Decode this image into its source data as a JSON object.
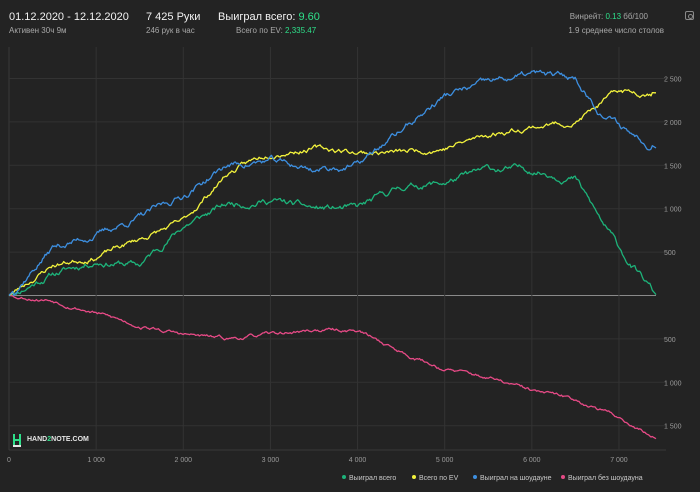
{
  "header": {
    "date_range": "01.12.2020 - 12.12.2020",
    "active": "Активен 30ч 9м",
    "hands": "7 425 Руки",
    "hands_per_hour": "246 рук в час",
    "won_label": "Выиграл всего:",
    "won_value": "9.60",
    "ev_label": "Всего по EV:",
    "ev_value": "2,335.47",
    "winrate_label": "Винрейт:",
    "winrate_value": "0.13",
    "winrate_unit": "бб/100",
    "tables": "1.9 среднее число столов",
    "icon": "instagram-icon"
  },
  "logo": {
    "text_a": "HAND",
    "text_b": "2",
    "text_c": "NOTE.COM"
  },
  "colors": {
    "background": "#232323",
    "total": "#1db37a",
    "ev": "#f2f23c",
    "showdown": "#3d8fe0",
    "non_showdown": "#e64a86"
  },
  "chart_data": {
    "type": "line",
    "x_ticks": [
      "0",
      "1 000",
      "2 000",
      "3 000",
      "4 000",
      "5 000",
      "6 000",
      "7 000"
    ],
    "y_ticks_positive": [
      "500",
      "1 000",
      "1 500",
      "2 000",
      "2 500"
    ],
    "y_ticks_negative": [
      "500",
      "1 000",
      "1 500"
    ],
    "xlim": [
      0,
      7425
    ],
    "ylim": [
      -1700,
      2800
    ],
    "grid": true,
    "legend_position": "bottom-right",
    "series": [
      {
        "name": "Выиграл всего",
        "color": "#1db37a",
        "volatility": 55,
        "seed": 11,
        "x": [
          0,
          500,
          1000,
          1500,
          2000,
          2500,
          3000,
          3500,
          4000,
          4500,
          5000,
          5500,
          6000,
          6500,
          6800,
          7100,
          7425
        ],
        "y": [
          0,
          250,
          400,
          350,
          800,
          1050,
          1100,
          1000,
          1000,
          1250,
          1300,
          1450,
          1450,
          1350,
          850,
          400,
          10
        ]
      },
      {
        "name": "Всего по EV",
        "color": "#f2f23c",
        "volatility": 45,
        "seed": 23,
        "x": [
          0,
          500,
          1000,
          1500,
          2000,
          2500,
          3000,
          3500,
          4000,
          4500,
          5000,
          5500,
          6000,
          6500,
          7000,
          7425
        ],
        "y": [
          0,
          350,
          450,
          650,
          850,
          1400,
          1650,
          1700,
          1650,
          1650,
          1700,
          1850,
          1950,
          2000,
          2350,
          2335
        ]
      },
      {
        "name": "Выиграл на шоудауне",
        "color": "#3d8fe0",
        "volatility": 55,
        "seed": 37,
        "x": [
          0,
          500,
          1000,
          1500,
          2000,
          2500,
          3000,
          3500,
          4000,
          4500,
          5000,
          5500,
          6000,
          6500,
          6800,
          7100,
          7425
        ],
        "y": [
          0,
          550,
          700,
          900,
          1150,
          1500,
          1550,
          1450,
          1500,
          1900,
          2300,
          2450,
          2550,
          2500,
          2100,
          1900,
          1700
        ]
      },
      {
        "name": "Выиграл без шоудауна",
        "color": "#e64a86",
        "volatility": 30,
        "seed": 53,
        "x": [
          0,
          500,
          1000,
          1500,
          2000,
          2500,
          3000,
          3500,
          4000,
          4500,
          5000,
          5500,
          6000,
          6500,
          7000,
          7425
        ],
        "y": [
          0,
          -50,
          -200,
          -350,
          -450,
          -500,
          -450,
          -400,
          -400,
          -650,
          -850,
          -950,
          -1100,
          -1200,
          -1400,
          -1650
        ]
      }
    ]
  }
}
